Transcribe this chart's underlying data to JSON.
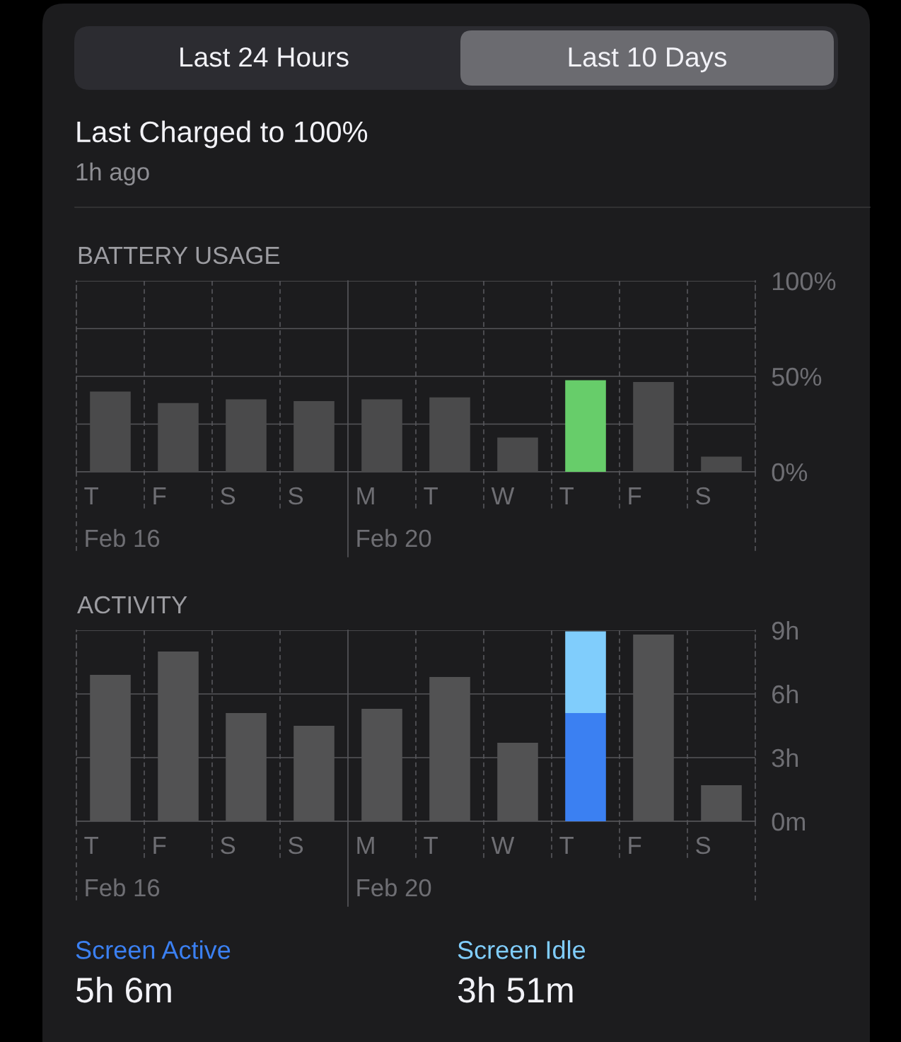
{
  "chart_data": [
    {
      "type": "other",
      "title": "Last Charged to 100%",
      "subtitle": "1h ago",
      "annotations": [
        "Last 24 Hours",
        "Last 10 Days"
      ]
    },
    {
      "type": "bar",
      "title": "BATTERY USAGE",
      "categories": [
        "T\nFeb 16",
        "F",
        "S",
        "S",
        "M\nFeb 20",
        "T",
        "W",
        "T",
        "F",
        "S"
      ],
      "values": [
        42,
        36,
        38,
        37,
        38,
        39,
        18,
        48,
        47,
        8
      ],
      "colors": [
        "#4a4a4b",
        "#4a4a4b",
        "#4a4a4b",
        "#4a4a4b",
        "#4a4a4b",
        "#4a4a4b",
        "#4a4a4b",
        "#67cd6a",
        "#4a4a4b",
        "#4a4a4b"
      ],
      "ylim": [
        0,
        100
      ],
      "yticks": [
        {
          "value": 0,
          "label": "0%"
        },
        {
          "value": 25,
          "label": null
        },
        {
          "value": 50,
          "label": "50%"
        },
        {
          "value": 75,
          "label": null
        },
        {
          "value": 100,
          "label": "100%"
        }
      ],
      "grid": true
    },
    {
      "type": "bar",
      "title": "ACTIVITY",
      "categories": [
        "T\nFeb 16",
        "F",
        "S",
        "S",
        "M\nFeb 20",
        "T",
        "W",
        "T",
        "F",
        "S"
      ],
      "stacked": true,
      "series": [
        {
          "color": "#525253",
          "values": [
            6.9,
            8.0,
            5.1,
            4.5,
            5.3,
            6.8,
            3.7,
            null,
            8.8,
            1.7
          ]
        },
        {
          "name": "Screen Active",
          "color": "#3b80f2",
          "values": [
            null,
            null,
            null,
            null,
            null,
            null,
            null,
            5.1,
            null,
            null
          ]
        },
        {
          "name": "Screen Idle",
          "color": "#80cdfc",
          "values": [
            null,
            null,
            null,
            null,
            null,
            null,
            null,
            3.85,
            null,
            null
          ]
        }
      ],
      "ylim": [
        0,
        9
      ],
      "yticks": [
        {
          "value": 0,
          "label": "0m"
        },
        {
          "value": 3,
          "label": "3h"
        },
        {
          "value": 6,
          "label": "6h"
        },
        {
          "value": 9,
          "label": "9h"
        }
      ],
      "grid": true,
      "legend": "bottom",
      "annotations": [
        "5h 6m",
        "3h 51m"
      ]
    }
  ]
}
